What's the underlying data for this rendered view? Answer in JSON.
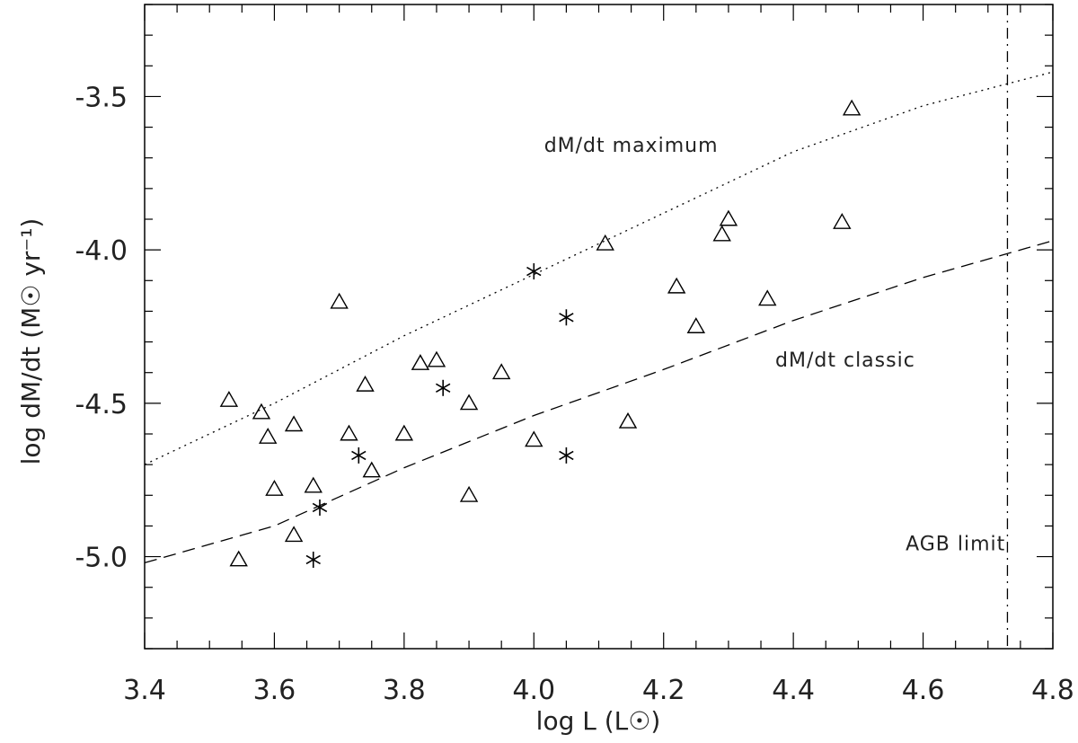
{
  "chart_data": {
    "type": "scatter",
    "xlabel": "log L (L☉)",
    "ylabel": "log dM/dt (M☉ yr⁻¹)",
    "xlim": [
      3.4,
      4.8
    ],
    "ylim": [
      -5.3,
      -3.2
    ],
    "x_ticks": [
      "3.4",
      "3.6",
      "3.8",
      "4.0",
      "4.2",
      "4.4",
      "4.6",
      "4.8"
    ],
    "y_ticks": [
      "-5.0",
      "-4.5",
      "-4.0",
      "-3.5"
    ],
    "grid": false,
    "series": [
      {
        "marker": "triangle",
        "points": [
          [
            3.53,
            -4.49
          ],
          [
            3.545,
            -5.01
          ],
          [
            3.58,
            -4.53
          ],
          [
            3.59,
            -4.61
          ],
          [
            3.6,
            -4.78
          ],
          [
            3.63,
            -4.57
          ],
          [
            3.63,
            -4.93
          ],
          [
            3.66,
            -4.77
          ],
          [
            3.7,
            -4.17
          ],
          [
            3.715,
            -4.6
          ],
          [
            3.74,
            -4.44
          ],
          [
            3.75,
            -4.72
          ],
          [
            3.8,
            -4.6
          ],
          [
            3.825,
            -4.37
          ],
          [
            3.85,
            -4.36
          ],
          [
            3.9,
            -4.5
          ],
          [
            3.9,
            -4.8
          ],
          [
            3.95,
            -4.4
          ],
          [
            4.0,
            -4.62
          ],
          [
            4.11,
            -3.98
          ],
          [
            4.145,
            -4.56
          ],
          [
            4.22,
            -4.12
          ],
          [
            4.25,
            -4.25
          ],
          [
            4.29,
            -3.95
          ],
          [
            4.3,
            -3.9
          ],
          [
            4.36,
            -4.16
          ],
          [
            4.475,
            -3.91
          ],
          [
            4.49,
            -3.54
          ]
        ]
      },
      {
        "marker": "asterisk",
        "points": [
          [
            3.66,
            -5.01
          ],
          [
            3.67,
            -4.84
          ],
          [
            3.73,
            -4.67
          ],
          [
            3.86,
            -4.45
          ],
          [
            4.0,
            -4.07
          ],
          [
            4.05,
            -4.22
          ],
          [
            4.05,
            -4.67
          ]
        ]
      }
    ],
    "lines": [
      {
        "label": "dM/dt maximum",
        "style": "dotted",
        "points": [
          [
            3.4,
            -4.7
          ],
          [
            3.6,
            -4.5
          ],
          [
            3.8,
            -4.28
          ],
          [
            4.0,
            -4.08
          ],
          [
            4.2,
            -3.88
          ],
          [
            4.4,
            -3.68
          ],
          [
            4.6,
            -3.53
          ],
          [
            4.8,
            -3.42
          ]
        ]
      },
      {
        "label": "dM/dt classic",
        "style": "dashed",
        "points": [
          [
            3.4,
            -5.02
          ],
          [
            3.6,
            -4.9
          ],
          [
            3.8,
            -4.71
          ],
          [
            4.0,
            -4.54
          ],
          [
            4.2,
            -4.39
          ],
          [
            4.4,
            -4.23
          ],
          [
            4.6,
            -4.09
          ],
          [
            4.8,
            -3.97
          ]
        ]
      },
      {
        "label": "AGB limit",
        "style": "dashdot",
        "vertical_x": 4.73
      }
    ],
    "annotations": [
      {
        "text": "dM/dt maximum",
        "x": 4.15,
        "y": -3.68
      },
      {
        "text": "dM/dt classic",
        "x": 4.48,
        "y": -4.38
      },
      {
        "text": "AGB limit",
        "x": 4.65,
        "y": -4.98
      }
    ]
  }
}
